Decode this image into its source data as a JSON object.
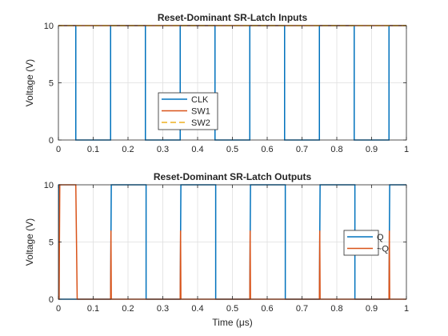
{
  "colors": {
    "CLK": "#0072BD",
    "SW1": "#D95319",
    "SW2": "#EDB120",
    "Q": "#0072BD",
    "notQ": "#D95319",
    "grid": "#dfdfdf",
    "axis": "#262626"
  },
  "chart_data": [
    {
      "type": "line",
      "title": "Reset-Dominant SR-Latch Inputs",
      "xlabel": "",
      "ylabel": "Voltage (V)",
      "xlim": [
        0,
        1
      ],
      "ylim": [
        0,
        10
      ],
      "xticks": [
        "0",
        "0.1",
        "0.2",
        "0.3",
        "0.4",
        "0.5",
        "0.6",
        "0.7",
        "0.8",
        "0.9",
        "1"
      ],
      "yticks": [
        "0",
        "5",
        "10"
      ],
      "grid": true,
      "legend": {
        "placement": "center",
        "entries": [
          "CLK",
          "SW1",
          "SW2"
        ]
      },
      "series": [
        {
          "name": "CLK",
          "style": "solid",
          "x": [
            0,
            0.05,
            0.05,
            0.15,
            0.15,
            0.25,
            0.25,
            0.35,
            0.35,
            0.45,
            0.45,
            0.55,
            0.55,
            0.65,
            0.65,
            0.75,
            0.75,
            0.85,
            0.85,
            0.95,
            0.95,
            1.0
          ],
          "y": [
            10,
            10,
            0,
            0,
            10,
            10,
            0,
            0,
            10,
            10,
            0,
            0,
            10,
            10,
            0,
            0,
            10,
            10,
            0,
            0,
            10,
            10
          ]
        },
        {
          "name": "SW1",
          "style": "solid",
          "x": [
            0,
            1
          ],
          "y": [
            10,
            10
          ]
        },
        {
          "name": "SW2",
          "style": "dashed",
          "x": [
            0,
            1
          ],
          "y": [
            10,
            10
          ]
        }
      ]
    },
    {
      "type": "line",
      "title": "Reset-Dominant SR-Latch Outputs",
      "xlabel": "Time (μs)",
      "ylabel": "Voltage (V)",
      "xlim": [
        0,
        1
      ],
      "ylim": [
        0,
        10
      ],
      "xticks": [
        "0",
        "0.1",
        "0.2",
        "0.3",
        "0.4",
        "0.5",
        "0.6",
        "0.7",
        "0.8",
        "0.9",
        "1"
      ],
      "yticks": [
        "0",
        "5",
        "10"
      ],
      "grid": true,
      "legend": {
        "placement": "right",
        "entries": [
          "Q",
          "~Q"
        ]
      },
      "series": [
        {
          "name": "Q",
          "style": "solid",
          "x": [
            0,
            0.002,
            0.002,
            0.15,
            0.152,
            0.252,
            0.252,
            0.35,
            0.352,
            0.452,
            0.452,
            0.55,
            0.552,
            0.652,
            0.652,
            0.75,
            0.752,
            0.852,
            0.852,
            0.95,
            0.952,
            1.0
          ],
          "y": [
            10,
            10,
            0,
            0,
            10,
            10,
            0,
            0,
            10,
            10,
            0,
            0,
            10,
            10,
            0,
            0,
            10,
            10,
            0,
            0,
            10,
            10
          ]
        },
        {
          "name": "~Q",
          "style": "solid",
          "x": [
            0,
            0.002,
            0.004,
            0.05,
            0.054,
            0.15,
            0.151,
            0.152,
            0.35,
            0.351,
            0.352,
            0.55,
            0.551,
            0.552,
            0.75,
            0.751,
            0.752,
            0.95,
            0.951,
            0.952,
            1.0
          ],
          "y": [
            0,
            0,
            10,
            10,
            0,
            0,
            6,
            0,
            0,
            6,
            0,
            0,
            6,
            0,
            0,
            6,
            0,
            0,
            6,
            0,
            0
          ]
        }
      ]
    }
  ]
}
